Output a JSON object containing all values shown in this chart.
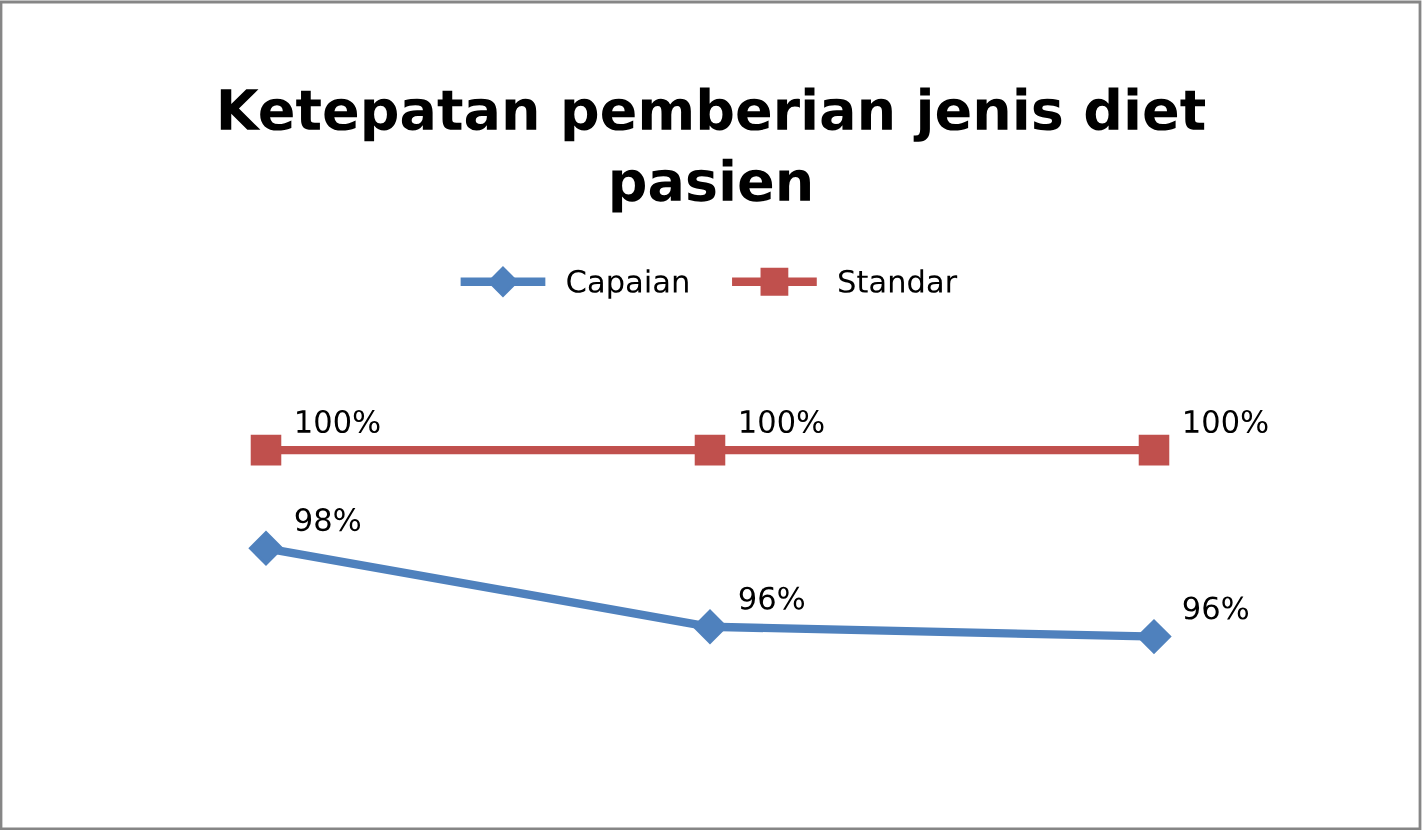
{
  "chart_data": {
    "type": "line",
    "title": "Ketepatan pemberian jenis diet\npasien",
    "categories": [
      null,
      null,
      null
    ],
    "legend": "top",
    "series": [
      {
        "name": "Capaian",
        "color": "#4f81bd",
        "marker": "diamond",
        "values": [
          98,
          96.4,
          96.2
        ],
        "value_labels": [
          "98%",
          "96%",
          "96%"
        ]
      },
      {
        "name": "Standar",
        "color": "#c0504d",
        "marker": "square",
        "values": [
          100,
          100,
          100
        ],
        "value_labels": [
          "100%",
          "100%",
          "100%"
        ]
      }
    ]
  }
}
